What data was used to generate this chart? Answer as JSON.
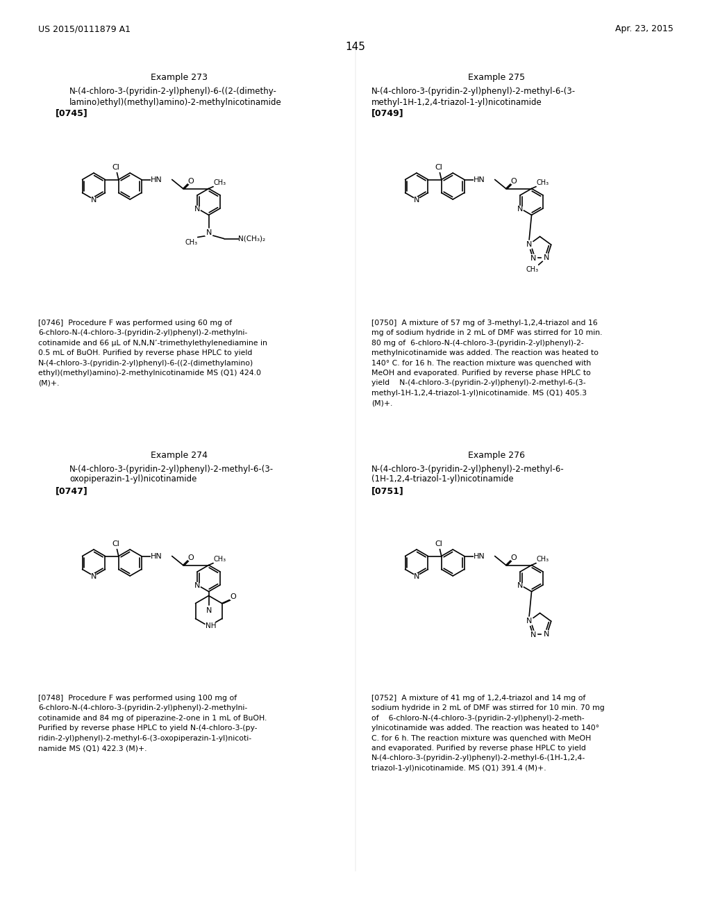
{
  "header_left": "US 2015/0111879 A1",
  "header_right": "Apr. 23, 2015",
  "page_number": "145",
  "example273_title": "Example 273",
  "example273_name1": "N-(4-chloro-3-(pyridin-2-yl)phenyl)-6-((2-(dimethy-",
  "example273_name2": "lamino)ethyl)(methyl)amino)-2-methylnicotinamide",
  "example273_tag": "[0745]",
  "example274_title": "Example 274",
  "example274_name1": "N-(4-chloro-3-(pyridin-2-yl)phenyl)-2-methyl-6-(3-",
  "example274_name2": "oxopiperazin-1-yl)nicotinamide",
  "example274_tag": "[0747]",
  "example275_title": "Example 275",
  "example275_name1": "N-(4-chloro-3-(pyridin-2-yl)phenyl)-2-methyl-6-(3-",
  "example275_name2": "methyl-1H-1,2,4-triazol-1-yl)nicotinamide",
  "example275_tag": "[0749]",
  "example276_title": "Example 276",
  "example276_name1": "N-(4-chloro-3-(pyridin-2-yl)phenyl)-2-methyl-6-",
  "example276_name2": "(1H-1,2,4-triazol-1-yl)nicotinamide",
  "example276_tag": "[0751]",
  "desc273": "[0746]  Procedure F was performed using 60 mg of\n6-chloro-N-(4-chloro-3-(pyridin-2-yl)phenyl)-2-methylni-\ncotinamide and 66 μL of N,N,N’-trimethylethylenediamine in\n0.5 mL of BuOH. Purified by reverse phase HPLC to yield\nN-(4-chloro-3-(pyridin-2-yl)phenyl)-6-((2-(dimethylamino)\nethyl)(methyl)amino)-2-methylnicotinamide MS (Q1) 424.0\n(M)+.",
  "desc274": "[0748]  Procedure F was performed using 100 mg of\n6-chloro-N-(4-chloro-3-(pyridin-2-yl)phenyl)-2-methylni-\ncotinamide and 84 mg of piperazine-2-one in 1 mL of BuOH.\nPurified by reverse phase HPLC to yield N-(4-chloro-3-(py-\nridin-2-yl)phenyl)-2-methyl-6-(3-oxopiperazin-1-yl)nicoti-\nnamide MS (Q1) 422.3 (M)+.",
  "desc275": "[0750]  A mixture of 57 mg of 3-methyl-1,2,4-triazol and 16\nmg of sodium hydride in 2 mL of DMF was stirred for 10 min.\n80 mg of  6-chloro-N-(4-chloro-3-(pyridin-2-yl)phenyl)-2-\nmethylnicotinamide was added. The reaction was heated to\n140° C. for 16 h. The reaction mixture was quenched with\nMeOH and evaporated. Purified by reverse phase HPLC to\nyield    N-(4-chloro-3-(pyridin-2-yl)phenyl)-2-methyl-6-(3-\nmethyl-1H-1,2,4-triazol-1-yl)nicotinamide. MS (Q1) 405.3\n(M)+.",
  "desc276": "[0752]  A mixture of 41 mg of 1,2,4-triazol and 14 mg of\nsodium hydride in 2 mL of DMF was stirred for 10 min. 70 mg\nof    6-chloro-N-(4-chloro-3-(pyridin-2-yl)phenyl)-2-meth-\nylnicotinamide was added. The reaction was heated to 140°\nC. for 6 h. The reaction mixture was quenched with MeOH\nand evaporated. Purified by reverse phase HPLC to yield\nN-(4-chloro-3-(pyridin-2-yl)phenyl)-2-methyl-6-(1H-1,2,4-\ntriazol-1-yl)nicotinamide. MS (Q1) 391.4 (M)+.",
  "bg_color": "#ffffff"
}
